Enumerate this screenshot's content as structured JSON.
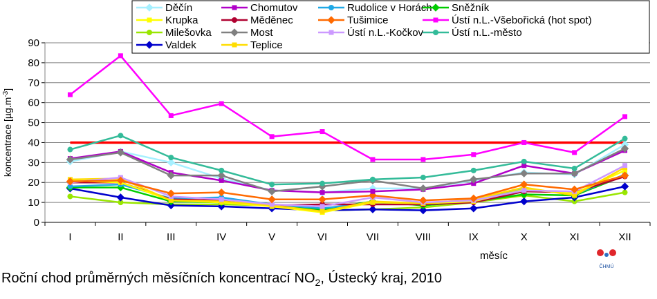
{
  "caption": {
    "main": "Roční chod průměrných měsíčních koncentrací NO",
    "sub": "2",
    "rest": ", Ústecký kraj, 2010"
  },
  "logo": {
    "text": "ČHMÚ",
    "colors": [
      "#e0262b",
      "#2b6fc2"
    ]
  },
  "chart_data": {
    "type": "line",
    "xlabel": "měsíc",
    "ylabel": "koncentrace [µg.m",
    "ylabel_sup": "-3",
    "ylabel_end": "]",
    "ylim": [
      0,
      90
    ],
    "yticks": [
      0,
      10,
      20,
      30,
      40,
      50,
      60,
      70,
      80,
      90
    ],
    "grid": true,
    "legend_position": "top",
    "categories": [
      "I",
      "II",
      "III",
      "IV",
      "V",
      "VI",
      "VII",
      "VIII",
      "IX",
      "X",
      "XI",
      "XII"
    ],
    "limit_line": {
      "value": 40,
      "color": "#ff0000"
    },
    "series": [
      {
        "name": "Děčín",
        "color": "#a6f0ff",
        "values": [
          30.5,
          35.5,
          30,
          22,
          16,
          15,
          17,
          17,
          21,
          25,
          24,
          39
        ]
      },
      {
        "name": "Chomutov",
        "color": "#b000c8",
        "values": [
          32,
          35.5,
          25,
          21,
          16,
          15,
          15.5,
          16.5,
          19.5,
          28.5,
          24.5,
          36
        ]
      },
      {
        "name": "Rudolice v Horách",
        "color": "#1fa8e6",
        "values": [
          18,
          19,
          12,
          12.5,
          9,
          7,
          10,
          9,
          11,
          17,
          14,
          24
        ]
      },
      {
        "name": "Sněžník",
        "color": "#00cc00",
        "values": [
          17.5,
          17.5,
          10.5,
          10,
          8.5,
          6.5,
          10.5,
          8.5,
          10.5,
          14,
          13.5,
          23.5
        ]
      },
      {
        "name": "Krupka",
        "color": "#ffff00",
        "values": [
          21,
          20,
          11,
          10,
          8,
          5,
          10,
          9.5,
          10.5,
          16.5,
          14.5,
          26
        ]
      },
      {
        "name": "Měděnec",
        "color": "#b00030",
        "values": [
          20,
          20,
          11.5,
          11,
          8.5,
          9,
          9,
          9,
          10,
          15.5,
          15,
          23
        ]
      },
      {
        "name": "Tušimice",
        "color": "#ff6a00",
        "values": [
          20.5,
          21,
          14.5,
          15,
          11.5,
          11.5,
          13.5,
          11,
          12,
          19,
          16.5,
          23.5
        ]
      },
      {
        "name": "Ústí n.L.-Všebořická (hot spot)",
        "color": "#ff00ff",
        "values": [
          64,
          83.5,
          53.5,
          59.5,
          43,
          45.5,
          31.5,
          31.5,
          34,
          40,
          35,
          53
        ]
      },
      {
        "name": "Milešovka",
        "color": "#99e600",
        "values": [
          13,
          10,
          9,
          9,
          8.5,
          6,
          6.5,
          7.5,
          10,
          13.5,
          10.5,
          15
        ]
      },
      {
        "name": "Most",
        "color": "#808080",
        "values": [
          31.5,
          35,
          23.5,
          23.5,
          15.5,
          18,
          21,
          17,
          21.5,
          24.5,
          24.5,
          37
        ]
      },
      {
        "name": "Ústí n.L.-Kočkov",
        "color": "#cc99ff",
        "values": [
          20,
          22.5,
          13,
          11.5,
          9,
          8,
          12.5,
          10,
          11,
          16,
          15.5,
          28.5
        ]
      },
      {
        "name": "Ústí n.L.-město",
        "color": "#33bb99",
        "values": [
          36.5,
          43.5,
          32.5,
          26,
          19,
          19.5,
          21.5,
          22.5,
          26,
          30.5,
          27,
          42
        ]
      },
      {
        "name": "Valdek",
        "color": "#0000cc",
        "values": [
          17,
          12.5,
          8.5,
          8,
          7,
          6,
          6.5,
          6,
          7,
          10.5,
          12.5,
          18
        ]
      },
      {
        "name": "Teplice",
        "color": "#ffdd00",
        "values": [
          21.5,
          22,
          11,
          10.5,
          8.5,
          5.5,
          10.5,
          9.5,
          11.5,
          17.5,
          13.5,
          27.5
        ]
      }
    ]
  }
}
